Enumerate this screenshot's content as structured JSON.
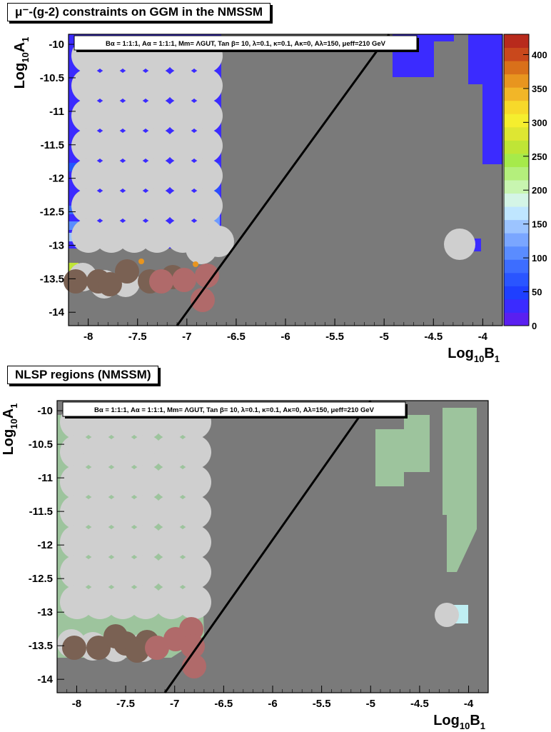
{
  "chart_data": [
    {
      "type": "scatter",
      "title": "μ⁻-(g-2) constraints on GGM in the NMSSM",
      "xlabel": "Log10B1",
      "ylabel": "Log10A1",
      "xlim": [
        -8.2,
        -3.8
      ],
      "ylim": [
        -14.2,
        -9.85
      ],
      "x_ticks": [
        "-8",
        "-7.5",
        "-7",
        "-6.5",
        "-6",
        "-5.5",
        "-5",
        "-4.5",
        "-4"
      ],
      "y_ticks": [
        "-10",
        "-10.5",
        "-11",
        "-11.5",
        "-12",
        "-12.5",
        "-13",
        "-13.5",
        "-14"
      ],
      "info_box": "Bα = 1:1:1, Aα = 1:1:1, Mm= ΛGUT, Tan β= 10, λ=0.1, κ=0.1, Aκ=0, Aλ=150, μeff=210 GeV",
      "colorbar": {
        "ticks": [
          "0",
          "50",
          "100",
          "150",
          "200",
          "250",
          "300",
          "350",
          "400"
        ],
        "range": [
          0,
          430
        ],
        "colors": [
          "#5a1ff0",
          "#3b2bff",
          "#1f3fff",
          "#2a55ff",
          "#3d6dff",
          "#5a8cff",
          "#7aa6ff",
          "#9cc4ff",
          "#bfe6ff",
          "#d4f5e6",
          "#c8f5b0",
          "#b4ef7c",
          "#a6ea4a",
          "#bfe536",
          "#dee632",
          "#f5ee2e",
          "#f7d92a",
          "#f2b628",
          "#e8951f",
          "#d9701a",
          "#c9481c",
          "#b82a1c"
        ]
      },
      "line": {
        "x": [
          -7.1,
          -4.95
        ],
        "y": [
          -14.2,
          -9.85
        ]
      }
    },
    {
      "type": "scatter",
      "title": "NLSP regions (NMSSM)",
      "xlabel": "Log10B1",
      "ylabel": "Log10A1",
      "xlim": [
        -8.2,
        -3.8
      ],
      "ylim": [
        -14.2,
        -9.85
      ],
      "x_ticks": [
        "-8",
        "-7.5",
        "-7",
        "-6.5",
        "-6",
        "-5.5",
        "-5",
        "-4.5",
        "-4"
      ],
      "y_ticks": [
        "-10",
        "-10.5",
        "-11",
        "-11.5",
        "-12",
        "-12.5",
        "-13",
        "-13.5",
        "-14"
      ],
      "info_box": "Bα = 1:1:1, Aα = 1:1:1, Mm= ΛGUT, Tan β= 10, λ=0.1, κ=0.1, Aκ=0, Aλ=150, μeff=210 GeV",
      "line": {
        "x": [
          -7.1,
          -5.0
        ],
        "y": [
          -14.2,
          -9.85
        ]
      }
    }
  ]
}
